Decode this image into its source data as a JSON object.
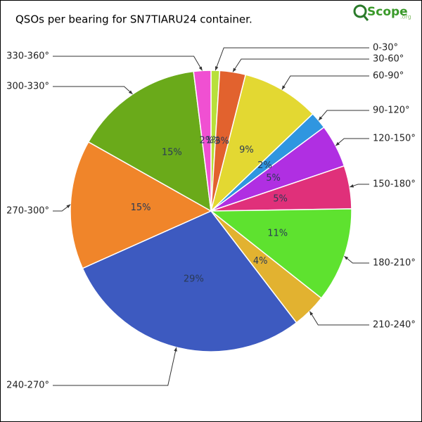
{
  "chart_data": {
    "type": "pie",
    "title": "QSOs per bearing for SN7TIARU24 container.",
    "logo": {
      "brand": "Scope",
      "suffix": ".org"
    },
    "categories": [
      "0-30°",
      "30-60°",
      "60-90°",
      "90-120°",
      "120-150°",
      "150-180°",
      "180-210°",
      "210-240°",
      "240-270°",
      "270-300°",
      "300-330°",
      "330-360°"
    ],
    "values": [
      1,
      3,
      9,
      2,
      5,
      5,
      11,
      4,
      29,
      15,
      15,
      2
    ],
    "value_labels": [
      "1%",
      "3%",
      "9%",
      "2%",
      "5%",
      "5%",
      "11%",
      "4%",
      "29%",
      "15%",
      "15%",
      "2%"
    ],
    "colors": [
      "#b8e03a",
      "#e2622e",
      "#e3d832",
      "#2f96e0",
      "#b02fe2",
      "#e0307a",
      "#5ee22f",
      "#e2b230",
      "#3d5ac0",
      "#f0852a",
      "#6aaa1a",
      "#f050d2"
    ]
  }
}
